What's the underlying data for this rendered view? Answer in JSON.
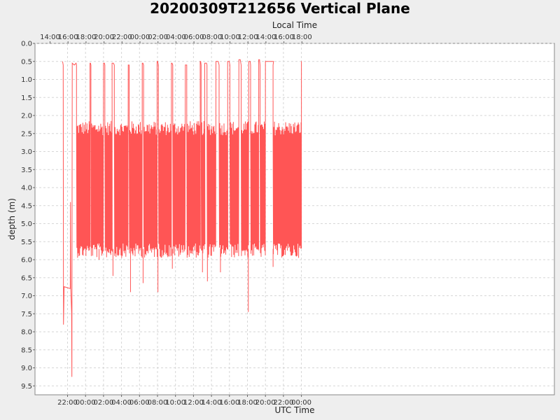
{
  "chart_data": {
    "type": "line",
    "title": "20200309T212656 Vertical Plane",
    "ylabel": "depth (m)",
    "xlabel_bottom": "UTC Time",
    "xlabel_top": "Local Time",
    "ylim": [
      0.0,
      9.6
    ],
    "y_inverted": true,
    "grid": true,
    "legend": "none",
    "y_ticks": [
      "0.0",
      "0.5",
      "1.0",
      "1.5",
      "2.0",
      "2.5",
      "3.0",
      "3.5",
      "4.0",
      "4.5",
      "5.0",
      "5.5",
      "6.0",
      "6.5",
      "7.0",
      "7.5",
      "8.0",
      "8.5",
      "9.0",
      "9.5"
    ],
    "x_ticks_bottom": [
      "22:00",
      "00:00",
      "02:00",
      "04:00",
      "06:00",
      "08:00",
      "10:00",
      "12:00",
      "14:00",
      "16:00",
      "18:00",
      "20:00",
      "22:00",
      "00:00"
    ],
    "x_ticks_top": [
      "14:00",
      "16:00",
      "18:00",
      "20:00",
      "22:00",
      "00:00",
      "02:00",
      "04:00",
      "06:00",
      "08:00",
      "10:00",
      "12:00",
      "14:00",
      "16:00",
      "18:00"
    ],
    "series": [
      {
        "color": "#ff5555",
        "oscillation_band_m": [
          2.5,
          5.8
        ],
        "points": [
          {
            "t_utc_h": 21.45,
            "depth_m": 0.5
          },
          {
            "t_utc_h": 21.52,
            "depth_m": 0.6
          },
          {
            "t_utc_h": 21.55,
            "depth_m": 7.8
          },
          {
            "t_utc_h": 21.62,
            "depth_m": 6.75
          },
          {
            "t_utc_h": 22.3,
            "depth_m": 6.8
          },
          {
            "t_utc_h": 22.33,
            "depth_m": 4.4
          },
          {
            "t_utc_h": 22.36,
            "depth_m": 6.8
          },
          {
            "t_utc_h": 22.45,
            "depth_m": 7.45
          },
          {
            "t_utc_h": 22.48,
            "depth_m": 9.25
          },
          {
            "t_utc_h": 22.52,
            "depth_m": 0.55
          },
          {
            "t_utc_h": 22.75,
            "depth_m": 0.6
          },
          {
            "t_utc_h": 22.95,
            "depth_m": 0.55
          },
          {
            "t_utc_h": 23.0,
            "depth_m": 0.6
          }
        ],
        "oscillation_segments": [
          {
            "start_h": 23.0,
            "end_h": 24.5,
            "surface_end_h": 24.55,
            "surface_depth_m": 0.55
          },
          {
            "start_h": 24.6,
            "end_h": 26.0,
            "surface_end_h": 26.1,
            "surface_depth_m": 0.55
          },
          {
            "start_h": 26.15,
            "end_h": 26.95,
            "surface_end_h": 27.1,
            "surface_depth_m": 0.55
          },
          {
            "start_h": 27.2,
            "end_h": 28.75,
            "surface_end_h": 28.8,
            "surface_depth_m": 0.6
          },
          {
            "start_h": 28.85,
            "end_h": 30.3,
            "surface_end_h": 30.38,
            "surface_depth_m": 0.55
          },
          {
            "start_h": 30.45,
            "end_h": 31.95,
            "surface_end_h": 32.02,
            "surface_depth_m": 0.5
          },
          {
            "start_h": 32.1,
            "end_h": 33.55,
            "surface_end_h": 33.62,
            "surface_depth_m": 0.55
          },
          {
            "start_h": 33.7,
            "end_h": 35.1,
            "surface_end_h": 35.2,
            "surface_depth_m": 0.6
          },
          {
            "start_h": 35.25,
            "end_h": 36.75,
            "surface_end_h": 36.8,
            "surface_depth_m": 0.5
          },
          {
            "start_h": 36.85,
            "end_h": 37.25,
            "surface_end_h": 37.45,
            "surface_depth_m": 0.55
          },
          {
            "start_h": 37.5,
            "end_h": 38.5,
            "surface_end_h": 38.75,
            "surface_depth_m": 0.5
          },
          {
            "start_h": 38.85,
            "end_h": 39.8,
            "surface_end_h": 39.98,
            "surface_depth_m": 0.5
          },
          {
            "start_h": 40.05,
            "end_h": 41.05,
            "surface_end_h": 41.2,
            "surface_depth_m": 0.45
          },
          {
            "start_h": 41.3,
            "end_h": 42.15,
            "surface_end_h": 42.3,
            "surface_depth_m": 0.5
          },
          {
            "start_h": 42.35,
            "end_h": 43.25,
            "surface_end_h": 43.35,
            "surface_depth_m": 0.45
          },
          {
            "start_h": 43.4,
            "end_h": 44.0,
            "surface_end_h": 44.9,
            "surface_depth_m": 0.5
          },
          {
            "start_h": 44.85,
            "end_h": 48.0,
            "surface_end_h": 48.02,
            "surface_depth_m": 0.5
          }
        ],
        "spikes": [
          {
            "t_utc_h": 25.5,
            "depth_m": 6.0
          },
          {
            "t_utc_h": 27.05,
            "depth_m": 6.45
          },
          {
            "t_utc_h": 29.0,
            "depth_m": 6.9
          },
          {
            "t_utc_h": 30.4,
            "depth_m": 6.65
          },
          {
            "t_utc_h": 32.05,
            "depth_m": 6.9
          },
          {
            "t_utc_h": 33.65,
            "depth_m": 6.25
          },
          {
            "t_utc_h": 37.0,
            "depth_m": 6.35
          },
          {
            "t_utc_h": 37.55,
            "depth_m": 6.6
          },
          {
            "t_utc_h": 39.0,
            "depth_m": 6.35
          },
          {
            "t_utc_h": 42.1,
            "depth_m": 7.45
          },
          {
            "t_utc_h": 44.85,
            "depth_m": 6.2
          }
        ]
      }
    ]
  }
}
